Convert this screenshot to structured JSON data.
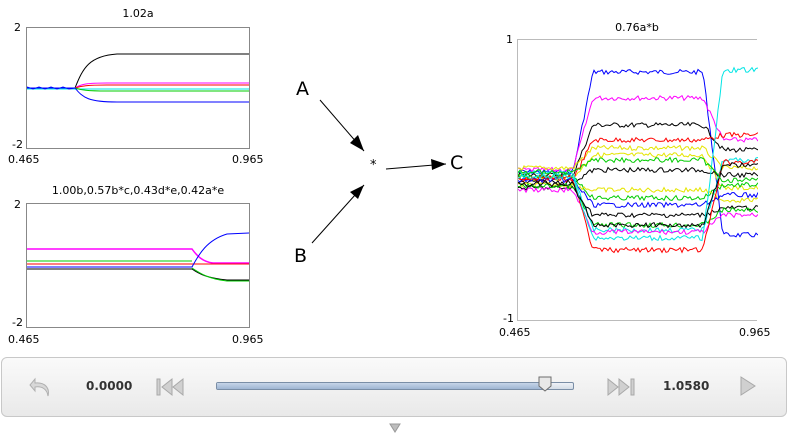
{
  "plots": {
    "top_left": {
      "title": "1.02a",
      "y_max_label": "2",
      "y_min_label": "-2",
      "x_min_label": "0.465",
      "x_max_label": "0.965"
    },
    "bottom_left": {
      "title": "1.00b,0.57b*c,0.43d*e,0.42a*e",
      "y_max_label": "2",
      "y_min_label": "-2",
      "x_min_label": "0.465",
      "x_max_label": "0.965"
    },
    "right": {
      "title": "0.76a*b",
      "y_max_label": "1",
      "y_min_label": "-1",
      "x_min_label": "0.465",
      "x_max_label": "0.965"
    }
  },
  "diagram": {
    "input_a": "A",
    "input_b": "B",
    "operator": "*",
    "output": "C"
  },
  "player": {
    "start_time": "0.0000",
    "end_time": "1.0580",
    "slider_position": 0.92
  },
  "icons": {
    "undo": "undo-arrow-icon",
    "rewind": "skip-to-start-icon",
    "fast_forward": "skip-to-end-icon",
    "play": "play-icon",
    "expand": "expand-down-icon"
  },
  "colors": {
    "trace_colors": [
      "#0000ff",
      "#ff00ff",
      "#000000",
      "#ff0000",
      "#00cc00",
      "#00e5e5",
      "#e5e500"
    ]
  }
}
